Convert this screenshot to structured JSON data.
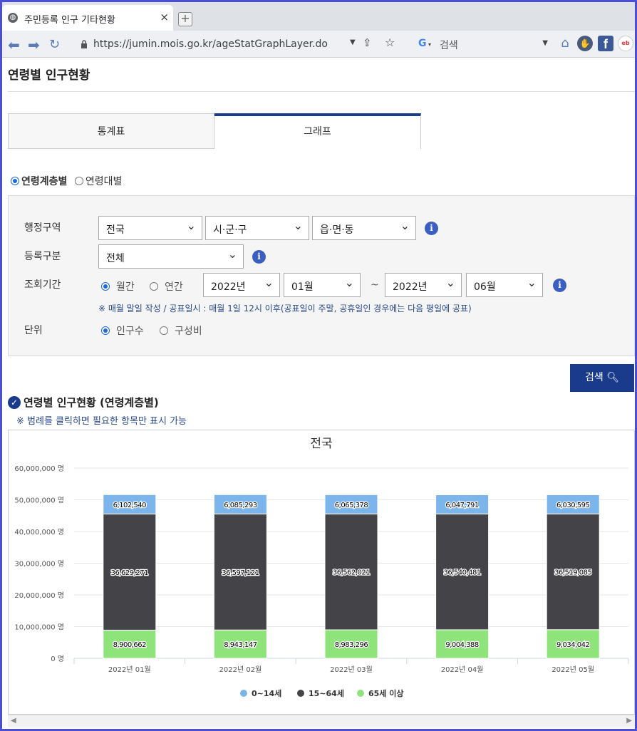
{
  "browser": {
    "tab_title": "주민등록 인구 기타현황",
    "close_glyph": "×",
    "new_tab_glyph": "+",
    "url": "https://jumin.mois.go.kr/ageStatGraphLayer.do",
    "search_engine": "G",
    "search_placeholder": "검색"
  },
  "page": {
    "title": "연령별 인구현황",
    "tabs": [
      {
        "label": "통계표"
      },
      {
        "label": "그래프"
      }
    ],
    "mode_options": [
      {
        "label": "연령계층별",
        "selected": true
      },
      {
        "label": "연령대별",
        "selected": false
      }
    ]
  },
  "filter": {
    "region_label": "행정구역",
    "region_values": [
      "전국",
      "시·군·구",
      "읍·면·동"
    ],
    "reg_type_label": "등록구분",
    "reg_type_value": "전체",
    "period_label": "조회기간",
    "period_options": [
      {
        "label": "월간",
        "selected": true
      },
      {
        "label": "연간",
        "selected": false
      }
    ],
    "from_year": "2022년",
    "from_month": "01월",
    "tilde": "~",
    "to_year": "2022년",
    "to_month": "06월",
    "note": "※ 매월 말일 작성 / 공표일시 : 매월 1일 12시 이후(공표일이 주말, 공휴일인 경우에는 다음 평일에 공표)",
    "unit_label": "단위",
    "unit_options": [
      {
        "label": "인구수",
        "selected": true
      },
      {
        "label": "구성비",
        "selected": false
      }
    ]
  },
  "search_button": "검색",
  "section": {
    "title": "연령별 인구현황 (연령계층별)",
    "note": "※ 범례를 클릭하면 필요한 항목만 표시 가능"
  },
  "chart_data": {
    "type": "bar",
    "stacked": true,
    "title": "전국",
    "categories": [
      "2022년 01월",
      "2022년 02월",
      "2022년 03월",
      "2022년 04월",
      "2022년 05월"
    ],
    "series": [
      {
        "name": "65세 이상",
        "color": "#8ee37a",
        "values": [
          8900662,
          8943147,
          8983296,
          9004388,
          9034042
        ]
      },
      {
        "name": "15~64세",
        "color": "#434348",
        "values": [
          36629271,
          36597121,
          36562021,
          36540481,
          36519085
        ]
      },
      {
        "name": "0~14세",
        "color": "#7cb5ec",
        "values": [
          6102540,
          6085293,
          6065378,
          6047791,
          6030595
        ]
      }
    ],
    "legend_order": [
      "0~14세",
      "15~64세",
      "65세 이상"
    ],
    "ylim": [
      0,
      60000000
    ],
    "yticks": [
      "0 명",
      "10,000,000 명",
      "20,000,000 명",
      "30,000,000 명",
      "40,000,000 명",
      "50,000,000 명",
      "60,000,000 명"
    ],
    "grid": true,
    "legend_position": "bottom"
  }
}
